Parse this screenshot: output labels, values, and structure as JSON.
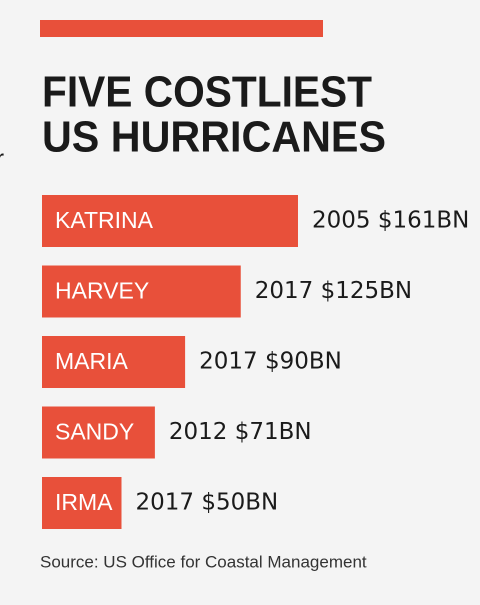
{
  "fragment": "r",
  "chart_data": {
    "type": "bar",
    "orientation": "horizontal",
    "title": [
      "FIVE COSTLIEST",
      "US HURRICANES"
    ],
    "categories": [
      "KATRINA",
      "HARVEY",
      "MARIA",
      "SANDY",
      "IRMA"
    ],
    "values": [
      161,
      125,
      90,
      71,
      50
    ],
    "value_labels": [
      "2005 $161BN",
      "2017 $125BN",
      "2017 $90BN",
      "2012 $71BN",
      "2017 $50BN"
    ],
    "color": "#e8503a",
    "source": "Source: US Office for Coastal Management"
  }
}
